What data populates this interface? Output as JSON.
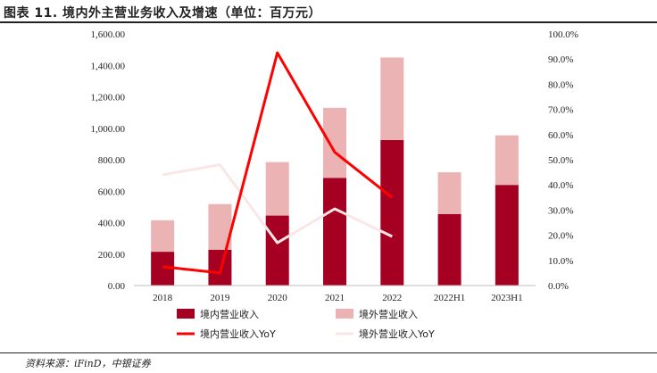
{
  "header": {
    "title": "图表 11. 境内外主营业务收入及增速（单位：百万元）"
  },
  "footer": {
    "source": "资料来源：iFinD，中银证券"
  },
  "colors": {
    "domestic": "#a50021",
    "overseas": "#ebb3b3",
    "domestic_yoy": "#ff0000",
    "overseas_yoy": "#fbe6e6"
  },
  "chart_data": {
    "type": "bar",
    "categories": [
      "2018",
      "2019",
      "2020",
      "2021",
      "2022",
      "2022H1",
      "2023H1"
    ],
    "series": [
      {
        "name": "境内营业收入",
        "type": "bar",
        "axis": "left",
        "values": [
          215,
          228,
          445,
          685,
          925,
          455,
          640
        ]
      },
      {
        "name": "境外营业收入",
        "type": "bar",
        "axis": "left",
        "values": [
          200,
          290,
          340,
          445,
          525,
          265,
          315
        ]
      },
      {
        "name": "境内营业收入YoY",
        "type": "line",
        "axis": "right",
        "values": [
          7.5,
          5.0,
          92.5,
          53.0,
          35.0,
          null,
          null
        ]
      },
      {
        "name": "境外营业收入YoY",
        "type": "line",
        "axis": "right",
        "values": [
          44.0,
          48.0,
          17.0,
          30.5,
          19.5,
          null,
          null
        ]
      }
    ],
    "stacked": true,
    "ylim": [
      0,
      1600
    ],
    "y2lim": [
      0,
      100
    ],
    "yticks": [
      "0.00",
      "200.00",
      "400.00",
      "600.00",
      "800.00",
      "1,000.00",
      "1,200.00",
      "1,400.00",
      "1,600.00"
    ],
    "y2ticks": [
      "0.0%",
      "10.0%",
      "20.0%",
      "30.0%",
      "40.0%",
      "50.0%",
      "60.0%",
      "70.0%",
      "80.0%",
      "90.0%",
      "100.0%"
    ],
    "legend_position": "bottom",
    "grid": false
  }
}
